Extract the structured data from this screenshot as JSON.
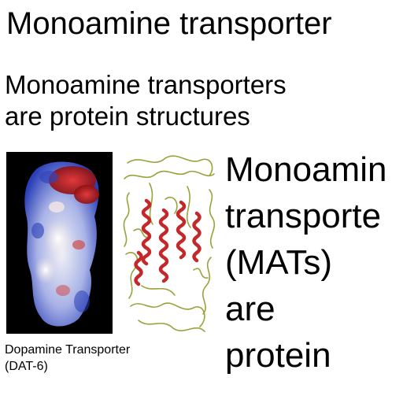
{
  "title": "Monoamine transporter",
  "subtitle": {
    "line1": "Monoamine transporters",
    "line2": "are protein structures"
  },
  "figure": {
    "caption_line1": "Dopamine Transporter",
    "caption_line2": "(DAT-6)"
  },
  "side_text": {
    "line1": "Monoamin",
    "line2": "transporte",
    "line3": "(MATs)",
    "line4": "are",
    "line5": "protein"
  },
  "colors": {
    "surface_positive": "#2a3fb8",
    "surface_negative": "#c81e1e",
    "ribbon_helix": "#c4282a",
    "ribbon_loop": "#9aa23a"
  }
}
